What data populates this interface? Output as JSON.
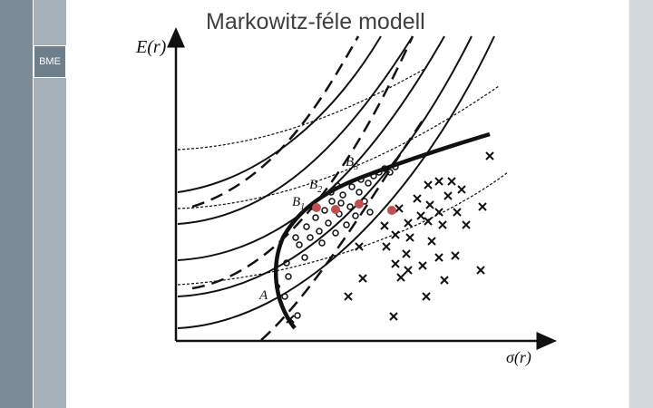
{
  "slide": {
    "title": "Markowitz-féle modell",
    "logo": "BME"
  },
  "axes": {
    "y_label": "E(r)",
    "x_label": "σ(r)"
  },
  "points": {
    "a": "A",
    "b1": "B",
    "b2": "B",
    "b3": "B",
    "b1_sub": "1",
    "b2_sub": "2",
    "b3_sub": "3"
  },
  "colors": {
    "highlight": "#c0504d",
    "sidebar_dark": "#7b8a97",
    "sidebar_light": "#a6b1ba"
  }
}
